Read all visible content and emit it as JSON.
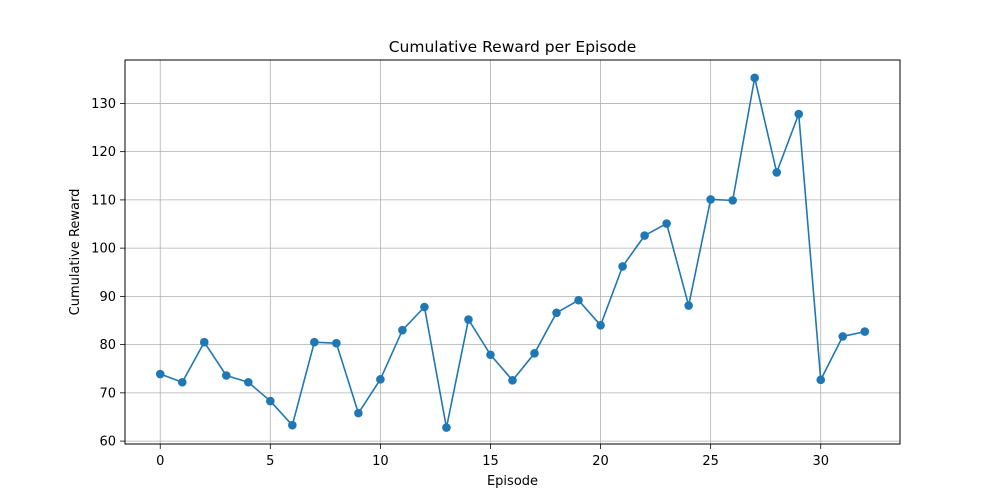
{
  "chart_data": {
    "type": "line",
    "title": "Cumulative Reward per Episode",
    "xlabel": "Episode",
    "ylabel": "Cumulative Reward",
    "xlim": [
      -1.6,
      33.6
    ],
    "ylim": [
      59.4,
      139
    ],
    "xticks": [
      0,
      5,
      10,
      15,
      20,
      25,
      30
    ],
    "yticks": [
      60,
      70,
      80,
      90,
      100,
      110,
      120,
      130
    ],
    "grid": true,
    "legend": "none",
    "series": [
      {
        "color": "#1f77b4",
        "marker": "circle",
        "x": [
          0,
          1,
          2,
          3,
          4,
          5,
          6,
          7,
          8,
          9,
          10,
          11,
          12,
          13,
          14,
          15,
          16,
          17,
          18,
          19,
          20,
          21,
          22,
          23,
          24,
          25,
          26,
          27,
          28,
          29,
          30,
          31,
          32
        ],
        "values": [
          73.9,
          72.2,
          80.5,
          73.6,
          72.2,
          68.3,
          63.3,
          80.5,
          80.3,
          65.8,
          72.8,
          83.0,
          87.8,
          62.8,
          85.2,
          77.9,
          72.6,
          78.2,
          86.6,
          89.2,
          84.0,
          96.2,
          102.6,
          105.1,
          88.1,
          110.1,
          109.9,
          135.3,
          115.7,
          127.8,
          72.7,
          81.7,
          82.7
        ]
      }
    ]
  }
}
